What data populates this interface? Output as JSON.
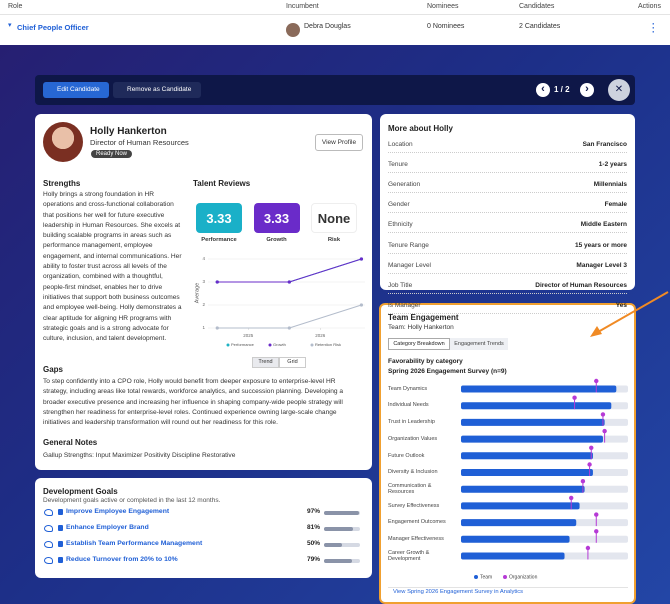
{
  "roles_table": {
    "headers": [
      "Role",
      "Incumbent",
      "Nominees",
      "Candidates",
      "Actions"
    ],
    "rows": [
      [
        "Chief People Officer",
        "Debra Douglas",
        "0 Nominees",
        "2 Candidates"
      ]
    ]
  },
  "toolbar": {
    "edit": "Edit Candidate",
    "remove": "Remove as Candidate",
    "pager": "1 / 2"
  },
  "profile": {
    "name": "Holly Hankerton",
    "title": "Director of Human Resources",
    "badge": "Ready Now",
    "view_profile": "View Profile"
  },
  "strengths": {
    "heading": "Strengths",
    "text": "Holly brings a strong foundation in HR operations and cross-functional collaboration that positions her well for future executive leadership in Human Resources. She excels at building scalable programs in areas such as performance management, employee engagement, and internal communications. Her ability to foster trust across all levels of the organization, combined with a thoughtful, people-first mindset, enables her to drive initiatives that support both business outcomes and employee well-being. Holly demonstrates a clear aptitude for aligning HR programs with strategic goals and is a strong advocate for culture, inclusion, and talent development."
  },
  "talent_reviews": {
    "heading": "Talent Reviews",
    "scores": [
      {
        "value": 3.33,
        "label": "Performance"
      },
      {
        "value": 3.33,
        "label": "Growth"
      },
      {
        "value": "None",
        "label": "Risk"
      }
    ],
    "view_toggle": [
      "Trend",
      "Grid"
    ]
  },
  "gaps": {
    "heading": "Gaps",
    "text": "To step confidently into a CPO role, Holly would benefit from deeper exposure to enterprise-level HR strategy, including areas like total rewards, workforce analytics, and succession planning. Developing a broader executive presence and increasing her influence in shaping company-wide people strategy will strengthen her readiness for enterprise-level roles. Continued experience owning large-scale change initiatives and leadership transformation will round out her readiness for this role."
  },
  "general_notes": {
    "heading": "General Notes",
    "text": "Gallup Strengths: Input Maximizer Positivity Discipline Restorative"
  },
  "development_goals": {
    "heading": "Development Goals",
    "subtitle": "Development goals active or completed in the last 12 months.",
    "xlim": [
      0,
      100
    ],
    "goals": [
      {
        "name": "Improve Employee Engagement",
        "value": 97,
        "value_label": "97%"
      },
      {
        "name": "Enhance Employer Brand",
        "value": 81,
        "value_label": "81%"
      },
      {
        "name": "Establish Team Performance Management",
        "value": 50,
        "value_label": "50%"
      },
      {
        "name": "Reduce Turnover from 20% to 10%",
        "value": 79,
        "value_label": "79%"
      }
    ]
  },
  "more_about": {
    "heading": "More about Holly",
    "rows": [
      [
        "Location",
        "San Francisco"
      ],
      [
        "Tenure",
        "1-2 years"
      ],
      [
        "Generation",
        "Millennials"
      ],
      [
        "Gender",
        "Female"
      ],
      [
        "Ethnicity",
        "Middle Eastern"
      ],
      [
        "Tenure Range",
        "15 years or more"
      ],
      [
        "Manager Level",
        "Manager Level 3"
      ],
      [
        "Job Title",
        "Director of Human Resources"
      ],
      [
        "Is Manager",
        "Yes"
      ]
    ]
  },
  "team_engagement": {
    "heading": "Team Engagement",
    "team": "Team: Holly Hankerton",
    "tabs": [
      "Category Breakdown",
      "Engagement Trends"
    ],
    "link": "View Spring 2026 Engagement Survey in Analytics"
  },
  "chart_data": [
    {
      "type": "line",
      "y_label": "Average",
      "x": [
        2024.57,
        2025.57,
        2026.57
      ],
      "xlim": [
        2024.4,
        2026.62
      ],
      "xticks": [
        2025,
        2026
      ],
      "ylim": [
        1,
        4
      ],
      "yticks": [
        1,
        2,
        3,
        4
      ],
      "grid": true,
      "series": [
        {
          "name": "Performance",
          "color": "#1fb3c4",
          "values": [
            3,
            3,
            4
          ]
        },
        {
          "name": "Growth",
          "color": "#6a2bc9",
          "values": [
            3,
            3,
            4
          ]
        },
        {
          "name": "Retention Risk",
          "color": "#b3bccb",
          "values": [
            1,
            1,
            2
          ]
        }
      ]
    },
    {
      "type": "hbar",
      "title": "Favorability by category",
      "subtitle": "Spring 2026 Engagement Survey (n=9)",
      "categories": [
        "Team Dynamics",
        "Individual Needs",
        "Trust in Leadership",
        "Organization Values",
        "Future Outlook",
        "Diversity & Inclusion",
        "Communication & Resources",
        "Survey Effectiveness",
        "Engagement Outcomes",
        "Manager Effectiveness",
        "Career Growth & Development"
      ],
      "xlim": [
        0,
        100
      ],
      "series": [
        {
          "name": "Team",
          "color": "#1f5fd6",
          "values": [
            93,
            90,
            86,
            85,
            79,
            79,
            74,
            71,
            69,
            65,
            62
          ]
        },
        {
          "name": "Organization",
          "color": "#b63ad6",
          "values": [
            81,
            68,
            85,
            86,
            78,
            77,
            73,
            66,
            81,
            81,
            76
          ]
        }
      ]
    }
  ]
}
